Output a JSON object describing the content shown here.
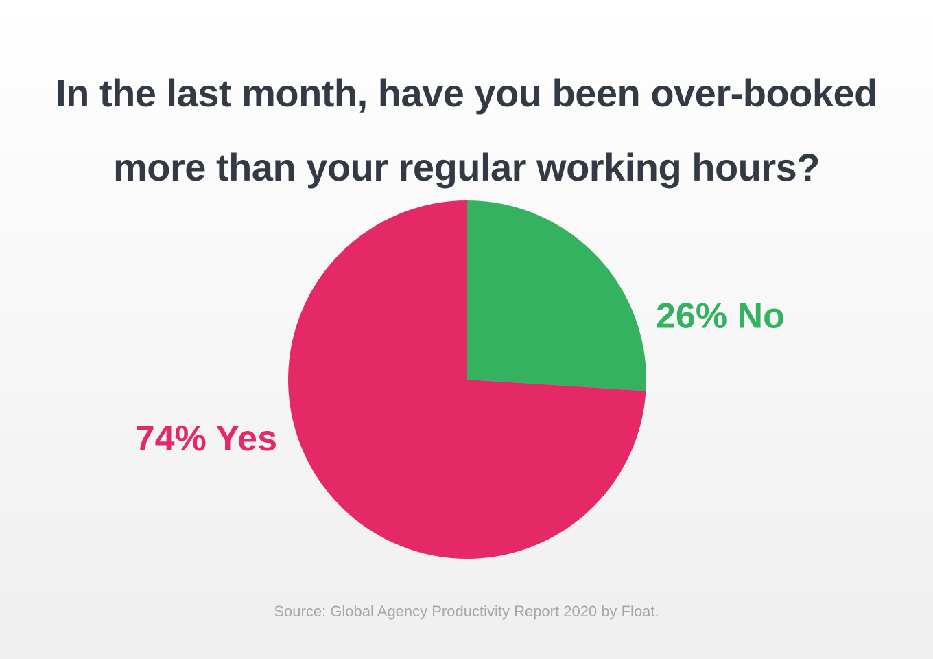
{
  "chart_data": {
    "type": "pie",
    "title": "In the last month, have you been over-booked more than your regular working hours?",
    "values": [
      26,
      74
    ],
    "value_labels": [
      "26% No",
      "74% Yes"
    ],
    "colors": [
      "#35b25f",
      "#e52866"
    ],
    "start_angle": 0,
    "direction": "clockwise",
    "source": "Source: Global Agency Productivity Report 2020 by Float."
  }
}
